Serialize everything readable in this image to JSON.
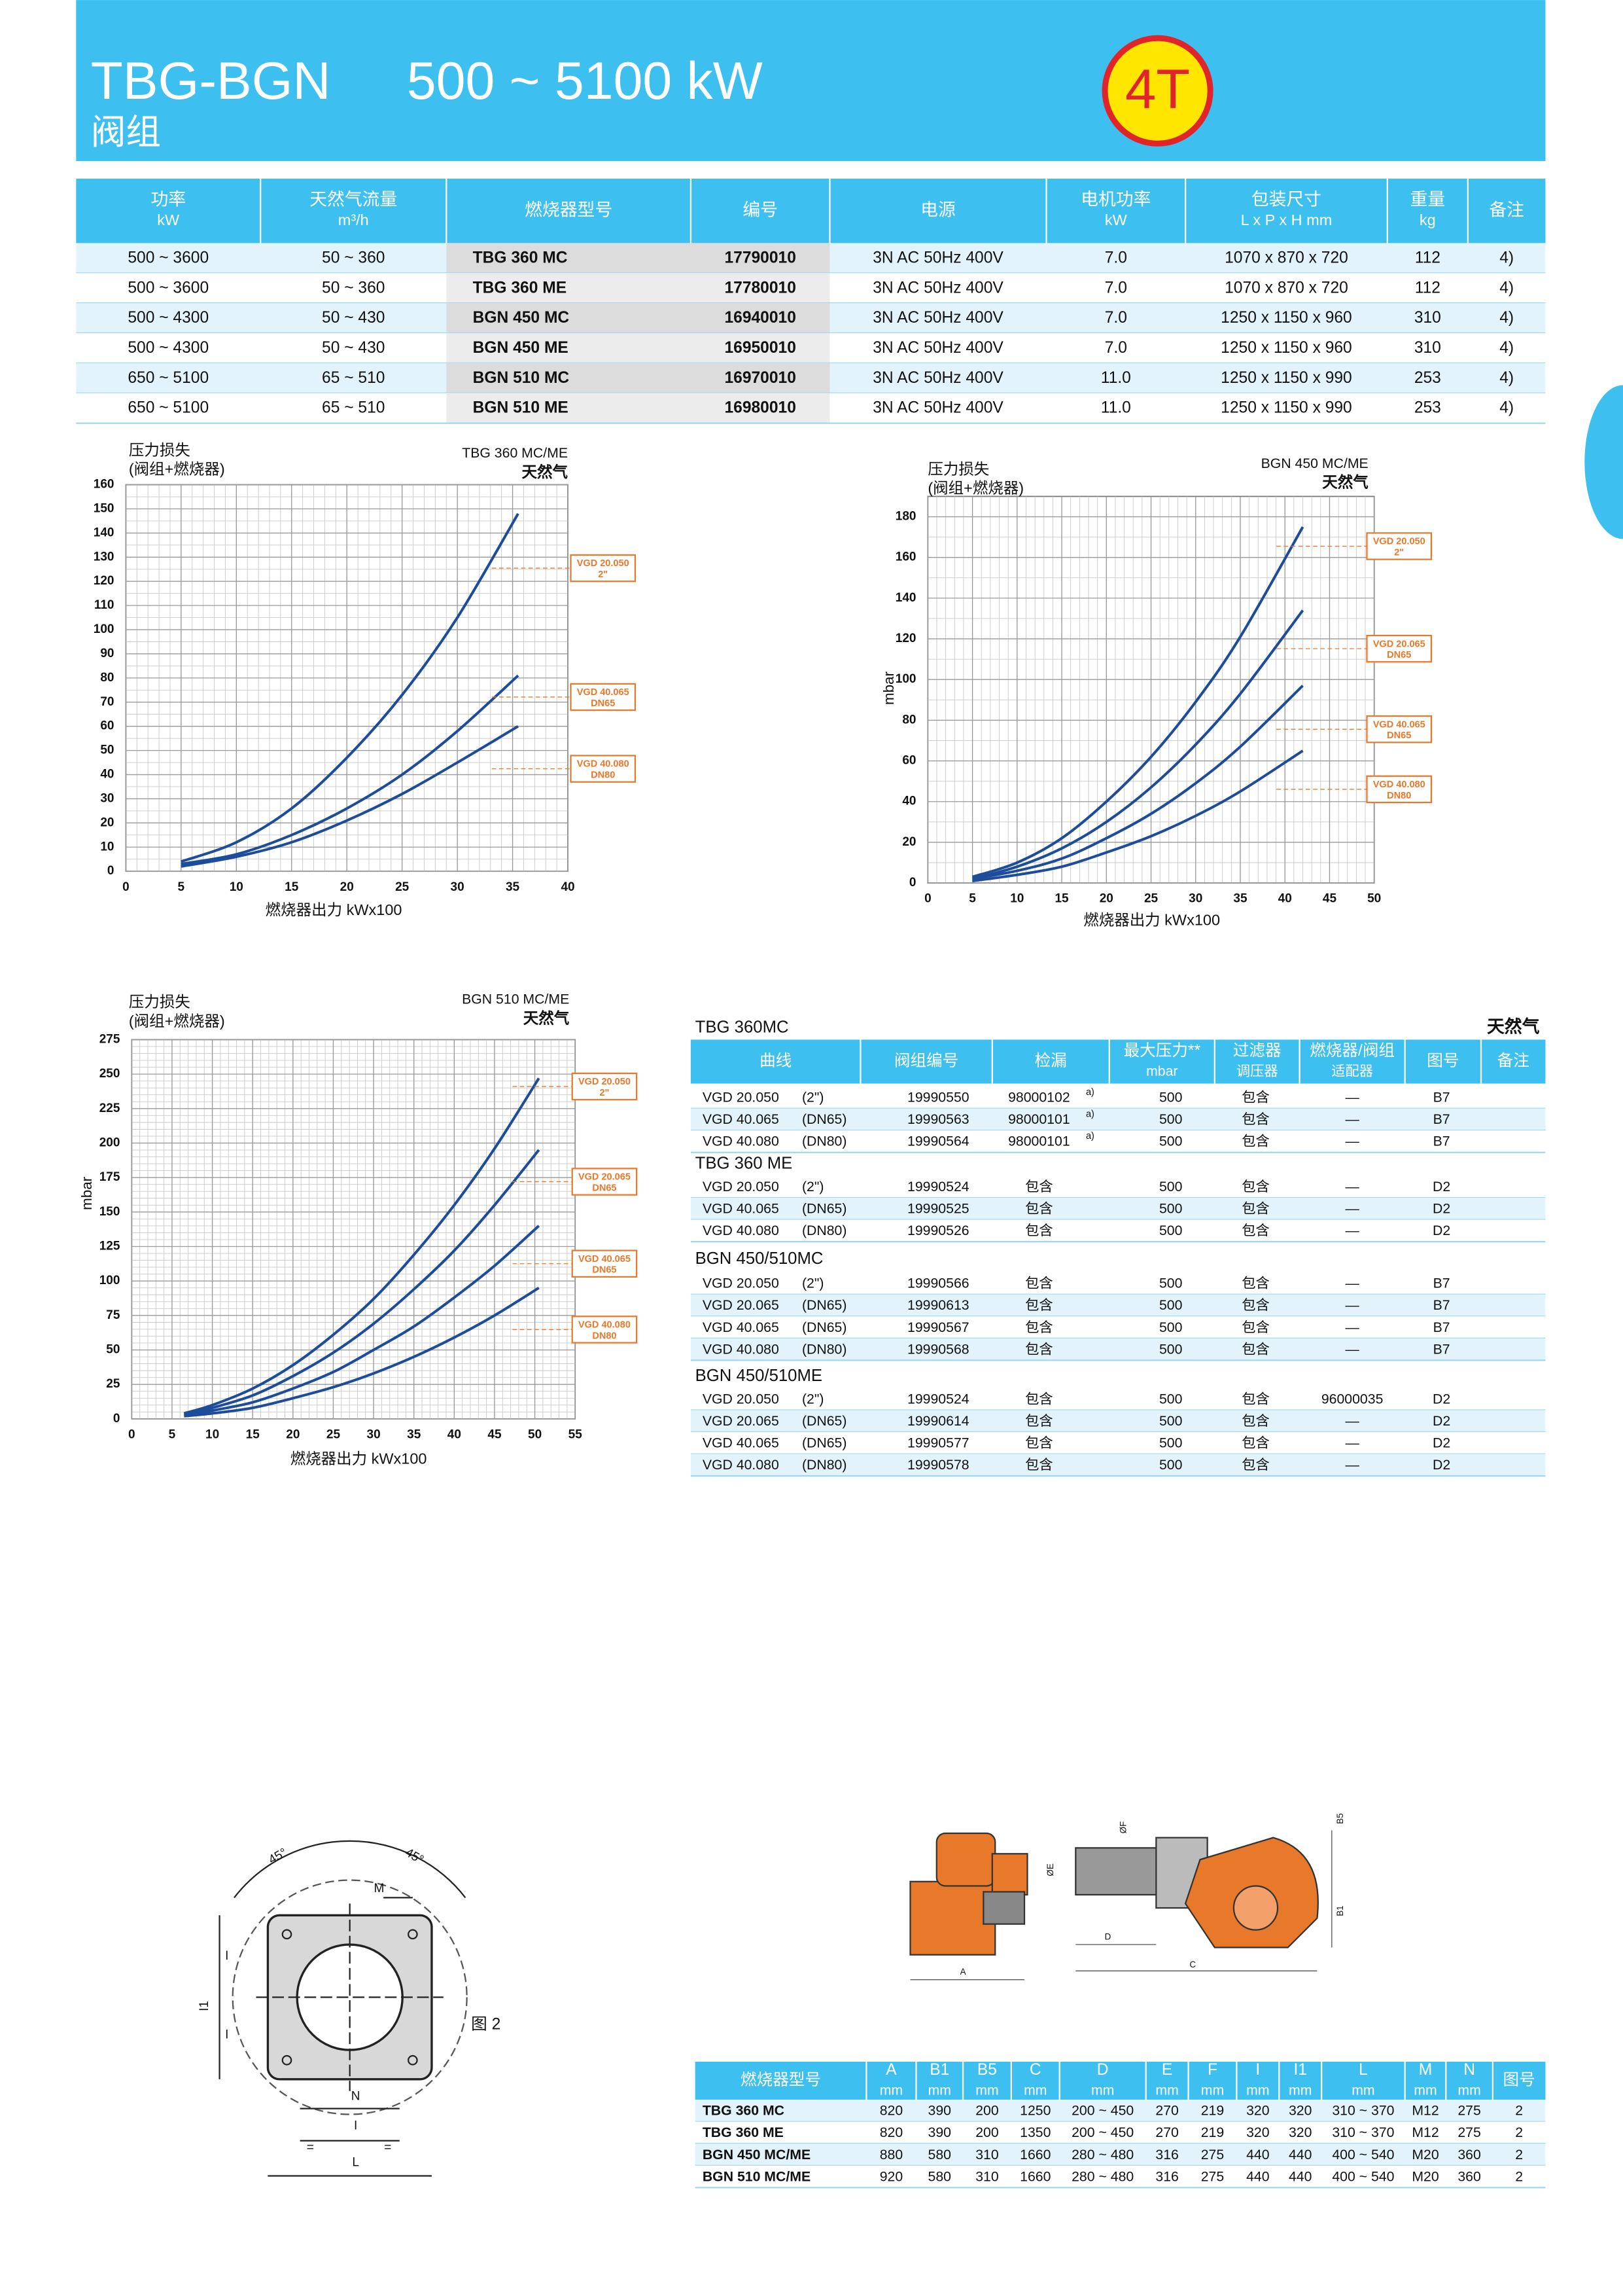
{
  "header": {
    "title": "TBG-BGN",
    "range": "500 ~ 5100 kW",
    "subtitle": "阀组",
    "badge": "4T"
  },
  "table1": {
    "headers": [
      [
        "功率",
        "kW"
      ],
      [
        "天然气流量",
        "m³/h"
      ],
      [
        "燃烧器型号"
      ],
      [
        "编号"
      ],
      [
        "电源"
      ],
      [
        "电机功率",
        "kW"
      ],
      [
        "包装尺寸",
        "L x P x H  mm"
      ],
      [
        "重量",
        "kg"
      ],
      [
        "备注"
      ]
    ],
    "rows": [
      [
        "500 ~ 3600",
        "50 ~ 360",
        "TBG 360 MC",
        "17790010",
        "3N AC 50Hz 400V",
        "7.0",
        "1070 x 870 x 720",
        "112",
        "4)"
      ],
      [
        "500 ~ 3600",
        "50 ~ 360",
        "TBG 360 ME",
        "17780010",
        "3N AC 50Hz 400V",
        "7.0",
        "1070 x 870 x 720",
        "112",
        "4)"
      ],
      [
        "500 ~ 4300",
        "50 ~ 430",
        "BGN 450 MC",
        "16940010",
        "3N AC 50Hz 400V",
        "7.0",
        "1250 x 1150 x 960",
        "310",
        "4)"
      ],
      [
        "500 ~ 4300",
        "50 ~ 430",
        "BGN 450 ME",
        "16950010",
        "3N AC 50Hz 400V",
        "7.0",
        "1250 x 1150 x 960",
        "310",
        "4)"
      ],
      [
        "650 ~ 5100",
        "65 ~ 510",
        "BGN 510 MC",
        "16970010",
        "3N AC 50Hz 400V",
        "11.0",
        "1250 x 1150 x 990",
        "253",
        "4)"
      ],
      [
        "650 ~ 5100",
        "65 ~ 510",
        "BGN 510 ME",
        "16980010",
        "3N AC 50Hz 400V",
        "11.0",
        "1250 x 1150 x 990",
        "253",
        "4)"
      ]
    ]
  },
  "chart_data": [
    {
      "type": "line",
      "title": "TBG 360 MC/ME",
      "subtitle": "天然气",
      "ylabel": [
        "压力损失",
        "(阀组+燃烧器)"
      ],
      "xlabel": "燃烧器出力 kWx100",
      "xlim": [
        0,
        40
      ],
      "xticks": [
        0,
        5,
        10,
        15,
        20,
        25,
        30,
        35,
        40
      ],
      "ylim": [
        0,
        160
      ],
      "yticks": [
        0,
        10,
        20,
        30,
        40,
        50,
        60,
        70,
        80,
        90,
        100,
        110,
        120,
        130,
        140,
        150,
        160
      ],
      "grid": true,
      "label_color": "#e8792b",
      "x": [
        5,
        10,
        15,
        20,
        25,
        30,
        35.5
      ],
      "series": [
        {
          "name": "VGD 20.050",
          "sub": "2\"",
          "color": "#1d4c9a",
          "values": [
            4,
            12,
            26,
            47,
            73,
            105,
            148
          ]
        },
        {
          "name": "VGD 40.065",
          "sub": "DN65",
          "color": "#1d4c9a",
          "values": [
            3,
            7,
            15,
            26,
            40,
            58,
            81
          ]
        },
        {
          "name": "VGD 40.080",
          "sub": "DN80",
          "color": "#1d4c9a",
          "values": [
            2,
            6,
            12,
            21,
            32,
            45,
            60
          ]
        }
      ]
    },
    {
      "type": "line",
      "title": "BGN 450 MC/ME",
      "subtitle": "天然气",
      "ylabel": [
        "压力损失",
        "(阀组+燃烧器)"
      ],
      "y_unit": "mbar",
      "xlabel": "燃烧器出力 kWx100",
      "xlim": [
        0,
        50
      ],
      "xticks": [
        0,
        5,
        10,
        15,
        20,
        25,
        30,
        35,
        40,
        45,
        50
      ],
      "ylim": [
        0,
        190
      ],
      "yticks": [
        0,
        20,
        40,
        60,
        80,
        100,
        120,
        140,
        160,
        180
      ],
      "grid": true,
      "label_color": "#e8792b",
      "x": [
        5,
        10,
        15,
        20,
        25,
        30,
        35,
        42
      ],
      "series": [
        {
          "name": "VGD 20.050",
          "sub": "2\"",
          "color": "#1d4c9a",
          "values": [
            3,
            10,
            22,
            40,
            62,
            89,
            121,
            175
          ]
        },
        {
          "name": "VGD 20.065",
          "sub": "DN65",
          "color": "#1d4c9a",
          "values": [
            2,
            8,
            17,
            30,
            47,
            68,
            93,
            134
          ]
        },
        {
          "name": "VGD 40.065",
          "sub": "DN65",
          "color": "#1d4c9a",
          "values": [
            2,
            6,
            12,
            22,
            34,
            49,
            67,
            97
          ]
        },
        {
          "name": "VGD 40.080",
          "sub": "DN80",
          "color": "#1d4c9a",
          "values": [
            1,
            4,
            8,
            15,
            23,
            33,
            45,
            65
          ]
        }
      ]
    },
    {
      "type": "line",
      "title": "BGN 510 MC/ME",
      "subtitle": "天然气",
      "ylabel": [
        "压力损失",
        "(阀组+燃烧器)"
      ],
      "y_unit": "mbar",
      "xlabel": "燃烧器出力 kWx100",
      "xlim": [
        0,
        55
      ],
      "xticks": [
        0,
        5,
        10,
        15,
        20,
        25,
        30,
        35,
        40,
        45,
        50,
        55
      ],
      "ylim": [
        0,
        275
      ],
      "yticks": [
        0,
        25,
        50,
        75,
        100,
        125,
        150,
        175,
        200,
        225,
        250,
        275
      ],
      "grid": true,
      "label_color": "#e8792b",
      "x": [
        6.5,
        10,
        15,
        20,
        25,
        30,
        35,
        40,
        45,
        50.5
      ],
      "series": [
        {
          "name": "VGD 20.050",
          "sub": "2\"",
          "color": "#1d4c9a",
          "values": [
            4,
            10,
            22,
            39,
            61,
            87,
            119,
            155,
            196,
            247
          ]
        },
        {
          "name": "VGD 20.065",
          "sub": "DN65",
          "color": "#1d4c9a",
          "values": [
            3,
            8,
            17,
            31,
            48,
            69,
            94,
            122,
            155,
            195
          ]
        },
        {
          "name": "VGD 40.065",
          "sub": "DN65",
          "color": "#1d4c9a",
          "values": [
            2,
            6,
            12,
            22,
            34,
            50,
            67,
            88,
            111,
            140
          ]
        },
        {
          "name": "VGD 40.080",
          "sub": "DN80",
          "color": "#1d4c9a",
          "values": [
            2,
            4,
            8,
            15,
            23,
            33,
            45,
            59,
            75,
            95
          ]
        }
      ]
    }
  ],
  "table2": {
    "gas": "天然气",
    "headers": [
      [
        "曲线"
      ],
      [
        "阀组编号"
      ],
      [
        "检漏"
      ],
      [
        "最大压力**",
        "mbar"
      ],
      [
        "过滤器",
        "调压器"
      ],
      [
        "燃烧器/阀组",
        "适配器"
      ],
      [
        "图号"
      ],
      [
        "备注"
      ]
    ],
    "groups": [
      {
        "title": "TBG 360MC",
        "notes": [
          "a)",
          "a)",
          "a)"
        ],
        "rows": [
          [
            "VGD 20.050",
            "(2\")",
            "19990550",
            "98000102",
            "500",
            "包含",
            "—",
            "B7"
          ],
          [
            "VGD 40.065",
            "(DN65)",
            "19990563",
            "98000101",
            "500",
            "包含",
            "—",
            "B7"
          ],
          [
            "VGD 40.080",
            "(DN80)",
            "19990564",
            "98000101",
            "500",
            "包含",
            "—",
            "B7"
          ]
        ]
      },
      {
        "title": "TBG 360 ME",
        "rows": [
          [
            "VGD 20.050",
            "(2\")",
            "19990524",
            "包含",
            "500",
            "包含",
            "—",
            "D2"
          ],
          [
            "VGD 40.065",
            "(DN65)",
            "19990525",
            "包含",
            "500",
            "包含",
            "—",
            "D2"
          ],
          [
            "VGD 40.080",
            "(DN80)",
            "19990526",
            "包含",
            "500",
            "包含",
            "—",
            "D2"
          ]
        ]
      },
      {
        "title": "BGN 450/510MC",
        "rows": [
          [
            "VGD 20.050",
            "(2\")",
            "19990566",
            "包含",
            "500",
            "包含",
            "—",
            "B7"
          ],
          [
            "VGD 20.065",
            "(DN65)",
            "19990613",
            "包含",
            "500",
            "包含",
            "—",
            "B7"
          ],
          [
            "VGD 40.065",
            "(DN65)",
            "19990567",
            "包含",
            "500",
            "包含",
            "—",
            "B7"
          ],
          [
            "VGD 40.080",
            "(DN80)",
            "19990568",
            "包含",
            "500",
            "包含",
            "—",
            "B7"
          ]
        ]
      },
      {
        "title": "BGN 450/510ME",
        "rows": [
          [
            "VGD 20.050",
            "(2\")",
            "19990524",
            "包含",
            "500",
            "包含",
            "96000035",
            "D2"
          ],
          [
            "VGD 20.065",
            "(DN65)",
            "19990614",
            "包含",
            "500",
            "包含",
            "—",
            "D2"
          ],
          [
            "VGD 40.065",
            "(DN65)",
            "19990577",
            "包含",
            "500",
            "包含",
            "—",
            "D2"
          ],
          [
            "VGD 40.080",
            "(DN80)",
            "19990578",
            "包含",
            "500",
            "包含",
            "—",
            "D2"
          ]
        ]
      }
    ]
  },
  "figure2": {
    "labels": [
      "45°",
      "45°",
      "M",
      "I",
      "I1",
      "I",
      "N",
      "I",
      "L",
      "=",
      "=",
      "图 2"
    ]
  },
  "burner": {
    "labels": [
      "A",
      "B1",
      "B5",
      "C",
      "D",
      "ØE",
      "ØF"
    ]
  },
  "table3": {
    "headers": [
      [
        "燃烧器型号"
      ],
      [
        "A",
        "mm"
      ],
      [
        "B1",
        "mm"
      ],
      [
        "B5",
        "mm"
      ],
      [
        "C",
        "mm"
      ],
      [
        "D",
        "mm"
      ],
      [
        "E",
        "mm"
      ],
      [
        "F",
        "mm"
      ],
      [
        "I",
        "mm"
      ],
      [
        "I1",
        "mm"
      ],
      [
        "L",
        "mm"
      ],
      [
        "M",
        "mm"
      ],
      [
        "N",
        "mm"
      ],
      [
        "图号"
      ]
    ],
    "rows": [
      [
        "TBG 360 MC",
        "820",
        "390",
        "200",
        "1250",
        "200 ~ 450",
        "270",
        "219",
        "320",
        "320",
        "310 ~ 370",
        "M12",
        "275",
        "2"
      ],
      [
        "TBG 360 ME",
        "820",
        "390",
        "200",
        "1350",
        "200 ~ 450",
        "270",
        "219",
        "320",
        "320",
        "310 ~ 370",
        "M12",
        "275",
        "2"
      ],
      [
        "BGN 450 MC/ME",
        "880",
        "580",
        "310",
        "1660",
        "280 ~ 480",
        "316",
        "275",
        "440",
        "440",
        "400 ~ 540",
        "M20",
        "360",
        "2"
      ],
      [
        "BGN 510 MC/ME",
        "920",
        "580",
        "310",
        "1660",
        "280 ~ 480",
        "316",
        "275",
        "440",
        "440",
        "400 ~ 540",
        "M20",
        "360",
        "2"
      ]
    ]
  }
}
